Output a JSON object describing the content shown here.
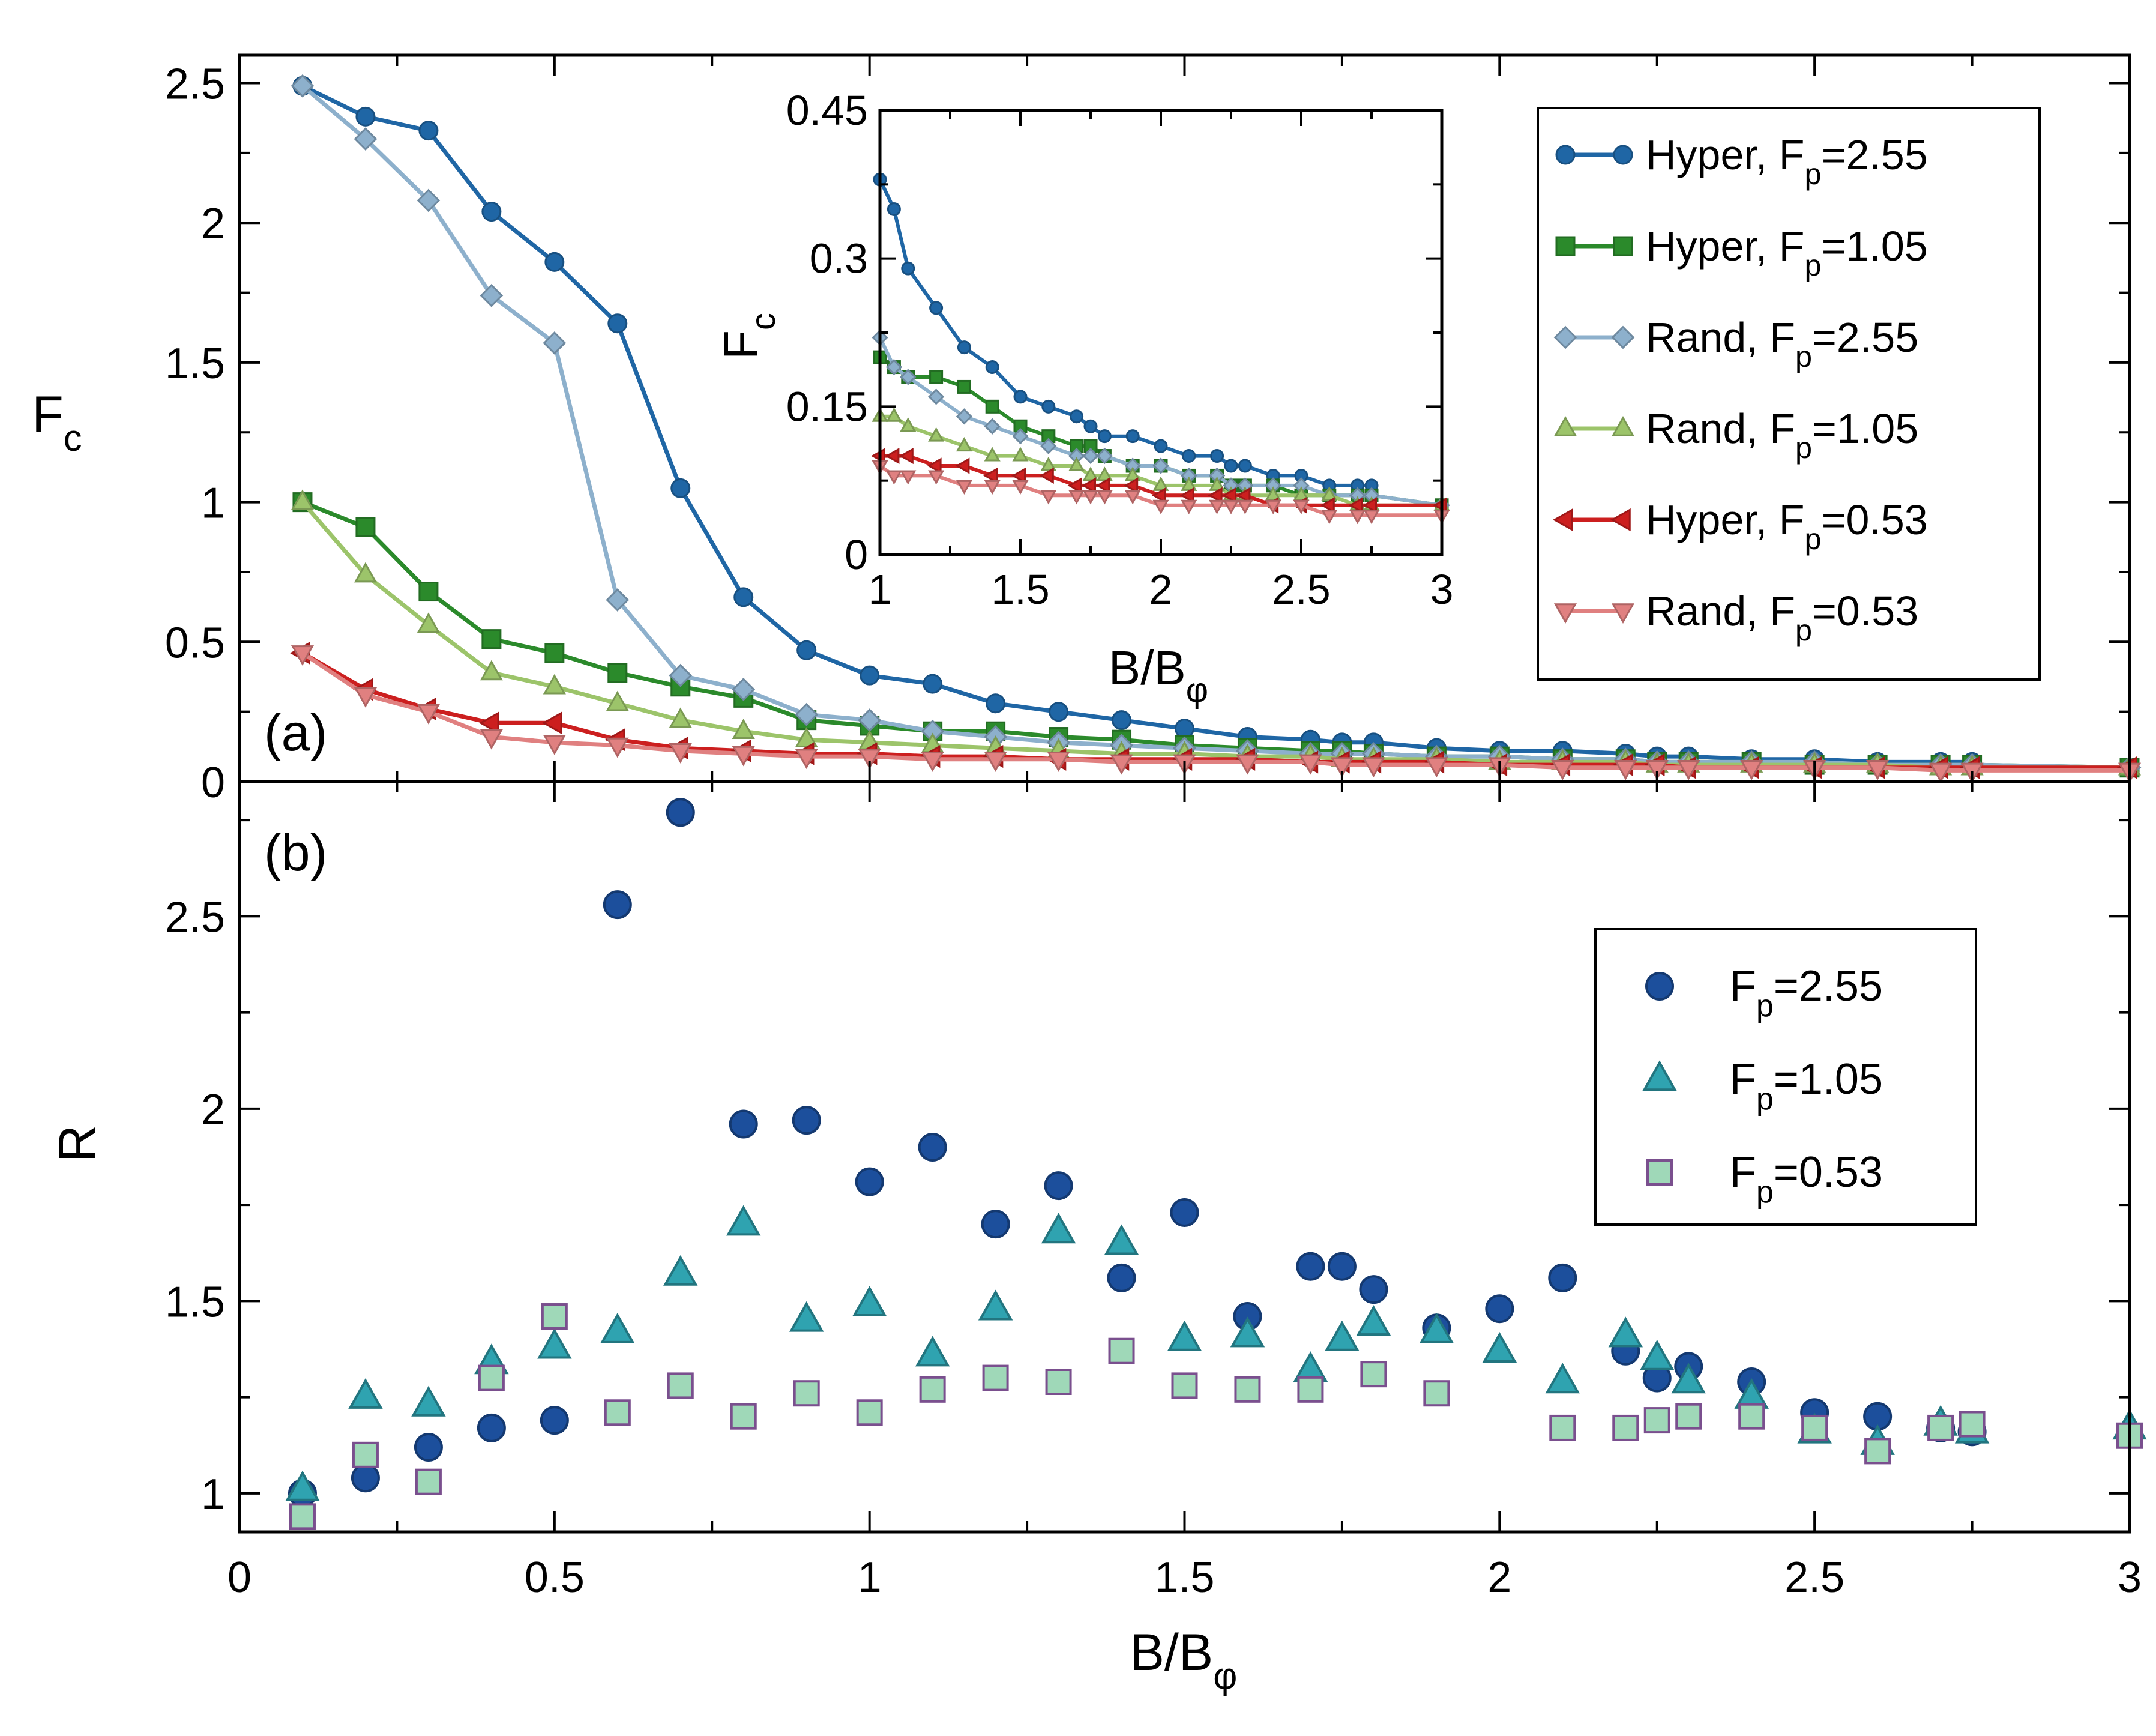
{
  "chart_data": [
    {
      "panel": "a",
      "panel_label": "(a)",
      "type": "line",
      "ylabel": "F",
      "ylabel_sub": "c",
      "xlim": [
        0,
        3
      ],
      "ylim": [
        0,
        2.6
      ],
      "xticks": [
        0,
        0.5,
        1,
        1.5,
        2,
        2.5,
        3
      ],
      "yticks": [
        0,
        0.5,
        1,
        1.5,
        2,
        2.5
      ],
      "ytick_labels": [
        "0",
        "0.5",
        "1",
        "1.5",
        "2",
        "2.5"
      ],
      "legend_position": "top-right",
      "x": [
        0.1,
        0.2,
        0.3,
        0.4,
        0.5,
        0.6,
        0.7,
        0.8,
        0.9,
        1.0,
        1.1,
        1.2,
        1.3,
        1.4,
        1.5,
        1.6,
        1.7,
        1.75,
        1.8,
        1.9,
        2.0,
        2.1,
        2.2,
        2.25,
        2.3,
        2.4,
        2.5,
        2.6,
        2.7,
        2.75,
        3.0
      ],
      "series": [
        {
          "name": "Hyper, F",
          "name_sub": "p",
          "name_tail": "=2.55",
          "color": "#1f66a5",
          "marker": "circle",
          "values": [
            2.49,
            2.38,
            2.33,
            2.04,
            1.86,
            1.64,
            1.05,
            0.66,
            0.47,
            0.38,
            0.35,
            0.28,
            0.25,
            0.22,
            0.19,
            0.16,
            0.15,
            0.14,
            0.14,
            0.12,
            0.11,
            0.11,
            0.1,
            0.09,
            0.09,
            0.08,
            0.08,
            0.07,
            0.07,
            0.07,
            null
          ]
        },
        {
          "name": "Hyper, F",
          "name_sub": "p",
          "name_tail": "=1.05",
          "color": "#2b8a2b",
          "marker": "square",
          "values": [
            1.0,
            0.91,
            0.68,
            0.51,
            0.46,
            0.39,
            0.34,
            0.3,
            0.22,
            0.2,
            0.18,
            0.18,
            0.16,
            0.15,
            0.13,
            0.12,
            0.11,
            0.11,
            0.1,
            0.09,
            0.09,
            0.08,
            0.08,
            0.07,
            0.07,
            0.07,
            0.06,
            0.06,
            0.06,
            0.06,
            0.05
          ]
        },
        {
          "name": "Rand, F",
          "name_sub": "p",
          "name_tail": "=2.55",
          "color": "#8db0cc",
          "marker": "diamond",
          "values": [
            2.49,
            2.3,
            2.08,
            1.74,
            1.57,
            0.65,
            0.38,
            0.33,
            0.24,
            0.22,
            0.18,
            0.16,
            0.14,
            0.13,
            0.12,
            0.11,
            0.1,
            0.1,
            0.1,
            0.09,
            0.09,
            0.08,
            0.08,
            0.07,
            0.07,
            0.07,
            0.07,
            0.06,
            0.06,
            0.06,
            0.05
          ]
        },
        {
          "name": "Rand, F",
          "name_sub": "p",
          "name_tail": "=1.05",
          "color": "#9cc46a",
          "marker": "triangle-up",
          "values": [
            1.0,
            0.74,
            0.56,
            0.39,
            0.34,
            0.28,
            0.22,
            0.18,
            0.15,
            0.14,
            0.13,
            0.12,
            0.11,
            0.1,
            0.1,
            0.09,
            0.09,
            0.08,
            0.08,
            0.08,
            0.07,
            0.07,
            0.07,
            0.06,
            0.06,
            0.06,
            0.06,
            0.06,
            0.05,
            0.05,
            0.05
          ]
        },
        {
          "name": "Hyper, F",
          "name_sub": "p",
          "name_tail": "=0.53",
          "color": "#cc1f1f",
          "marker": "triangle-left",
          "values": [
            0.46,
            0.33,
            0.26,
            0.21,
            0.21,
            0.15,
            0.12,
            0.11,
            0.1,
            0.1,
            0.09,
            0.09,
            0.08,
            0.08,
            0.08,
            0.08,
            0.07,
            0.07,
            0.07,
            0.07,
            0.06,
            0.06,
            0.06,
            0.06,
            0.05,
            0.05,
            0.05,
            0.05,
            0.05,
            0.05,
            0.05
          ]
        },
        {
          "name": "Rand, F",
          "name_sub": "p",
          "name_tail": "=0.53",
          "color": "#e08080",
          "marker": "triangle-down",
          "values": [
            0.46,
            0.31,
            0.25,
            0.16,
            0.14,
            0.13,
            0.11,
            0.1,
            0.09,
            0.09,
            0.08,
            0.08,
            0.08,
            0.07,
            0.07,
            0.07,
            0.07,
            0.06,
            0.06,
            0.06,
            0.06,
            0.05,
            0.05,
            0.05,
            0.05,
            0.05,
            0.05,
            0.05,
            0.04,
            0.04,
            0.04
          ]
        }
      ]
    },
    {
      "panel": "a-inset",
      "type": "line",
      "xlabel": "B/B",
      "xlabel_sub": "φ",
      "ylabel": "F",
      "ylabel_sub": "c",
      "xlim": [
        1,
        3
      ],
      "ylim": [
        0,
        0.45
      ],
      "xticks": [
        1,
        1.5,
        2,
        2.5,
        3
      ],
      "yticks": [
        0,
        0.15,
        0.3,
        0.45
      ],
      "ytick_labels": [
        "0",
        "0.15",
        "0.3",
        "0.45"
      ],
      "x": [
        1.0,
        1.05,
        1.1,
        1.2,
        1.3,
        1.4,
        1.5,
        1.6,
        1.7,
        1.75,
        1.8,
        1.9,
        2.0,
        2.1,
        2.2,
        2.25,
        2.3,
        2.4,
        2.5,
        2.6,
        2.7,
        2.75,
        3.0
      ],
      "series": [
        {
          "color": "#1f66a5",
          "marker": "circle",
          "values": [
            0.38,
            0.35,
            0.29,
            0.25,
            0.21,
            0.19,
            0.16,
            0.15,
            0.14,
            0.13,
            0.12,
            0.12,
            0.11,
            0.1,
            0.1,
            0.09,
            0.09,
            0.08,
            0.08,
            0.07,
            0.07,
            0.07,
            null
          ]
        },
        {
          "color": "#2b8a2b",
          "marker": "square",
          "values": [
            0.2,
            0.19,
            0.18,
            0.18,
            0.17,
            0.15,
            0.13,
            0.12,
            0.11,
            0.11,
            0.1,
            0.09,
            0.09,
            0.08,
            0.08,
            0.07,
            0.07,
            0.07,
            0.06,
            0.06,
            0.06,
            0.06,
            0.05
          ]
        },
        {
          "color": "#8db0cc",
          "marker": "diamond",
          "values": [
            0.22,
            0.19,
            0.18,
            0.16,
            0.14,
            0.13,
            0.12,
            0.11,
            0.1,
            0.1,
            0.1,
            0.09,
            0.09,
            0.08,
            0.08,
            0.07,
            0.07,
            0.07,
            0.07,
            0.06,
            0.06,
            0.06,
            0.05
          ]
        },
        {
          "color": "#9cc46a",
          "marker": "triangle-up",
          "values": [
            0.14,
            0.14,
            0.13,
            0.12,
            0.11,
            0.1,
            0.1,
            0.09,
            0.09,
            0.08,
            0.08,
            0.08,
            0.07,
            0.07,
            0.07,
            0.06,
            0.06,
            0.06,
            0.06,
            0.06,
            0.05,
            0.05,
            0.05
          ]
        },
        {
          "color": "#cc1f1f",
          "marker": "triangle-left",
          "values": [
            0.1,
            0.1,
            0.1,
            0.09,
            0.09,
            0.08,
            0.08,
            0.08,
            0.07,
            0.07,
            0.07,
            0.07,
            0.06,
            0.06,
            0.06,
            0.06,
            0.06,
            0.05,
            0.05,
            0.05,
            0.05,
            0.05,
            0.05
          ]
        },
        {
          "color": "#e08080",
          "marker": "triangle-down",
          "values": [
            0.09,
            0.08,
            0.08,
            0.08,
            0.07,
            0.07,
            0.07,
            0.06,
            0.06,
            0.06,
            0.06,
            0.06,
            0.05,
            0.05,
            0.05,
            0.05,
            0.05,
            0.05,
            0.05,
            0.04,
            0.04,
            0.04,
            0.04
          ]
        }
      ]
    },
    {
      "panel": "b",
      "panel_label": "(b)",
      "type": "scatter",
      "xlabel": "B/B",
      "xlabel_sub": "φ",
      "ylabel": "R",
      "xlim": [
        0,
        3
      ],
      "ylim": [
        0.9,
        2.85
      ],
      "xticks": [
        0,
        0.5,
        1,
        1.5,
        2,
        2.5,
        3
      ],
      "xtick_labels": [
        "0",
        "0.5",
        "1",
        "1.5",
        "2",
        "2.5",
        "3"
      ],
      "yticks": [
        1,
        1.5,
        2,
        2.5
      ],
      "ytick_labels": [
        "1",
        "1.5",
        "2",
        "2.5"
      ],
      "legend_position": "top-right",
      "x": [
        0.1,
        0.2,
        0.3,
        0.4,
        0.5,
        0.6,
        0.7,
        0.8,
        0.9,
        1.0,
        1.1,
        1.2,
        1.3,
        1.4,
        1.5,
        1.6,
        1.7,
        1.75,
        1.8,
        1.9,
        2.0,
        2.1,
        2.2,
        2.25,
        2.3,
        2.4,
        2.5,
        2.6,
        2.7,
        2.75,
        3.0
      ],
      "series": [
        {
          "name": "F",
          "name_sub": "p",
          "name_tail": "=2.55",
          "color": "#1c4f9c",
          "marker": "circle",
          "values": [
            1.0,
            1.04,
            1.12,
            1.17,
            1.19,
            2.53,
            2.77,
            1.96,
            1.97,
            1.81,
            1.9,
            1.7,
            1.8,
            1.56,
            1.73,
            1.46,
            1.59,
            1.59,
            1.53,
            1.43,
            1.48,
            1.56,
            1.37,
            1.3,
            1.33,
            1.29,
            1.21,
            1.2,
            1.17,
            1.16,
            null
          ]
        },
        {
          "name": "F",
          "name_sub": "p",
          "name_tail": "=1.05",
          "color": "#2fa3b0",
          "marker": "triangle-up",
          "values": [
            1.01,
            1.25,
            1.23,
            1.34,
            1.38,
            1.42,
            1.57,
            1.7,
            1.45,
            1.49,
            1.36,
            1.48,
            1.68,
            1.65,
            1.4,
            1.41,
            1.32,
            1.4,
            1.44,
            1.42,
            1.37,
            1.29,
            1.41,
            1.35,
            1.29,
            1.25,
            1.16,
            1.13,
            1.18,
            1.16,
            1.17
          ]
        },
        {
          "name": "F",
          "name_sub": "p",
          "name_tail": "=0.53",
          "color": "#9fd8b8",
          "marker": "square",
          "values": [
            0.94,
            1.1,
            1.03,
            1.3,
            1.46,
            1.21,
            1.28,
            1.2,
            1.26,
            1.21,
            1.27,
            1.3,
            1.29,
            1.37,
            1.28,
            1.27,
            1.27,
            null,
            1.31,
            1.26,
            null,
            1.17,
            1.17,
            1.19,
            1.2,
            1.2,
            1.17,
            1.11,
            1.17,
            1.18,
            1.15
          ]
        }
      ]
    }
  ]
}
